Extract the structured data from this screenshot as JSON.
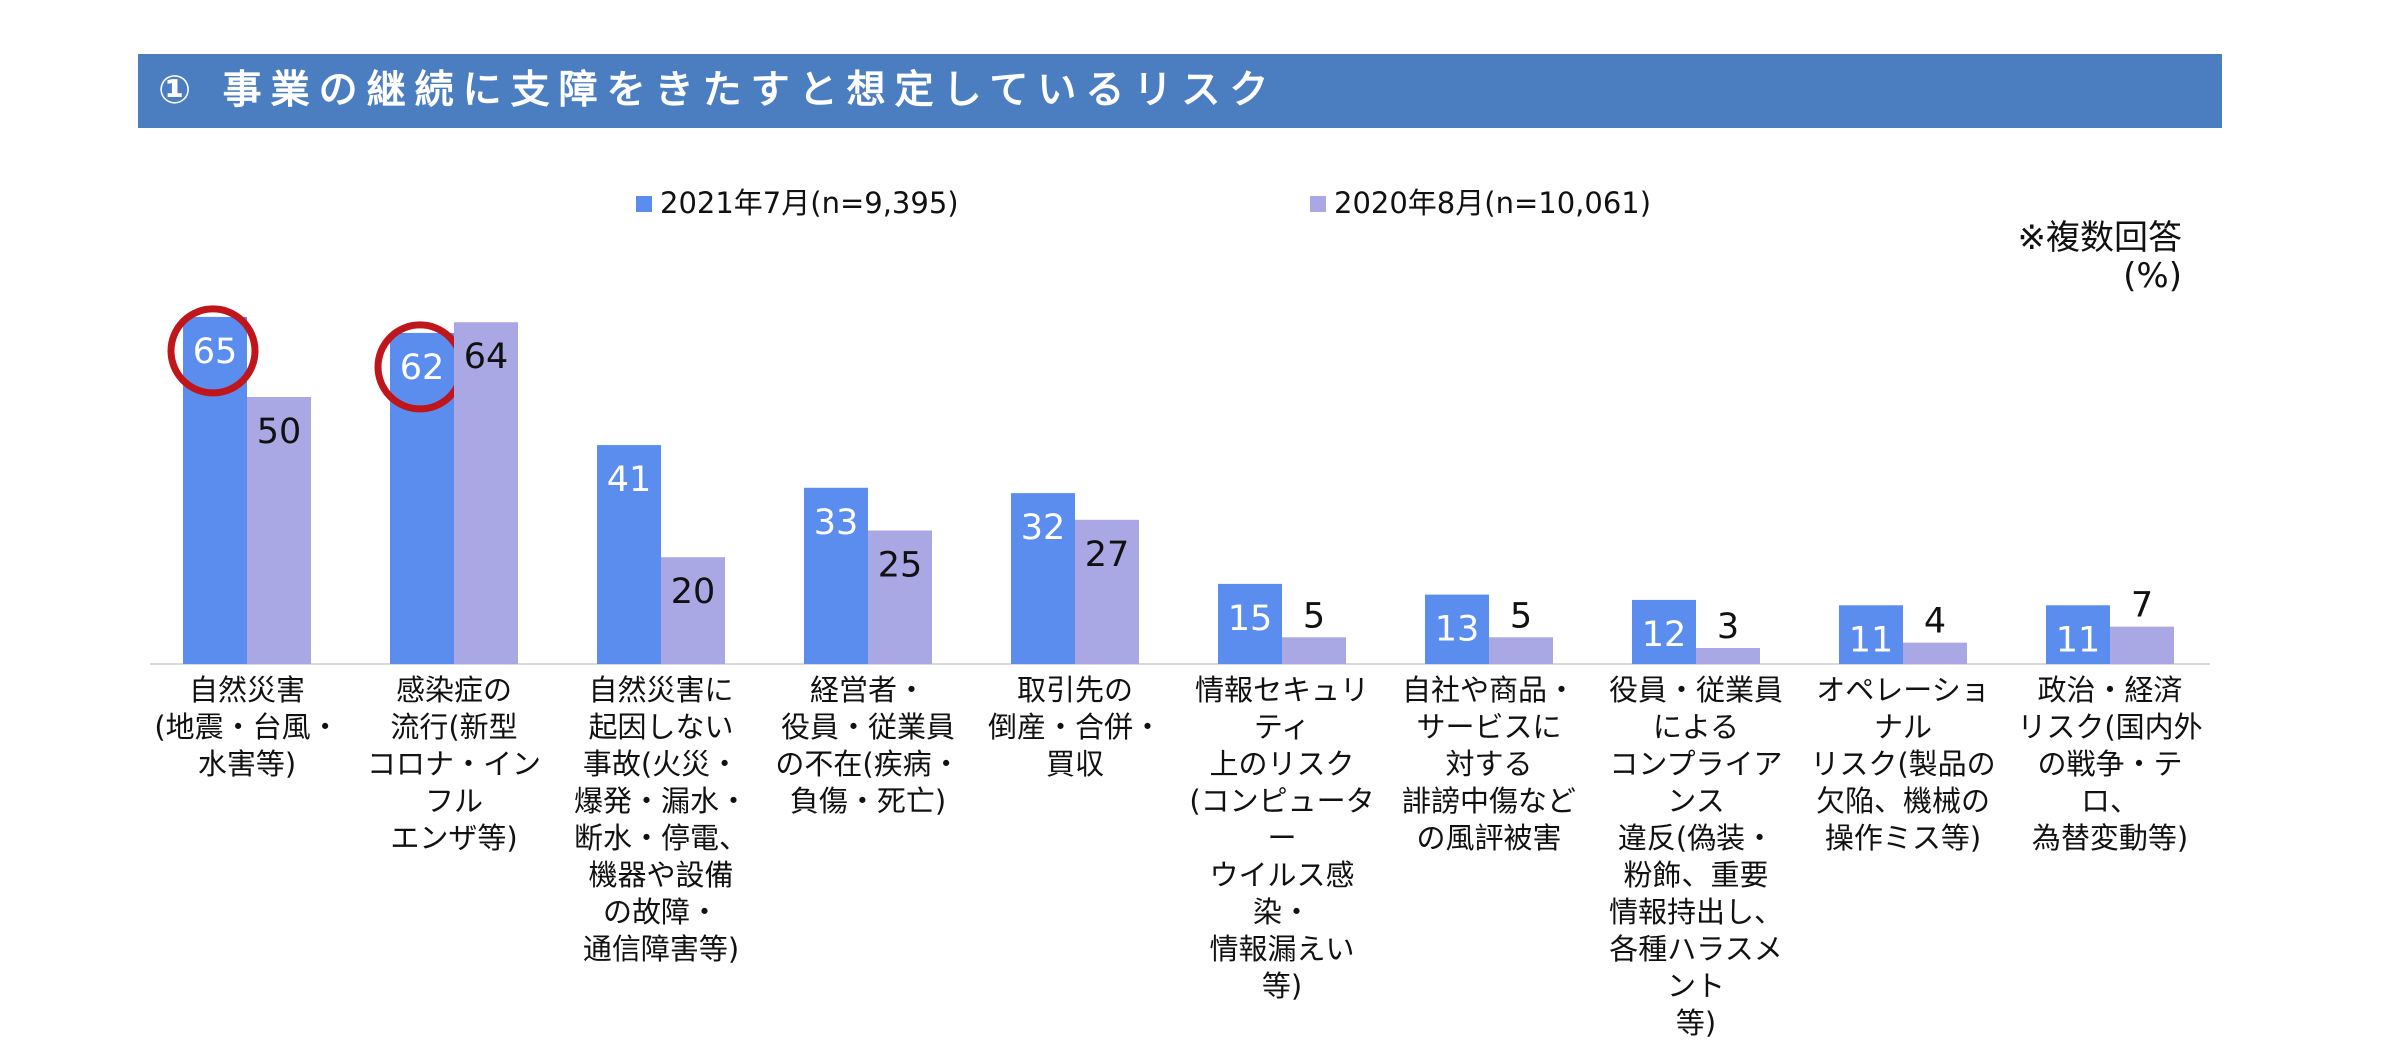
{
  "header": {
    "title": "① 事業の継続に支障をきたすと想定しているリスク"
  },
  "note": {
    "multiple_answers": "※複数回答",
    "unit": "(%)"
  },
  "colors": {
    "title_bg": "#4a7ec1",
    "series_2021": "#5b8def",
    "series_2020": "#a9a8e4",
    "highlight_circle": "#c0151b"
  },
  "chart_data": {
    "type": "bar",
    "title": "",
    "xlabel": "",
    "ylabel": "",
    "ylim": [
      0,
      70
    ],
    "grid": false,
    "legend_position": "top",
    "categories": [
      "自然災害\n(地震・台風・\n水害等)",
      "感染症の\n流行(新型\nコロナ・インフル\nエンザ等)",
      "自然災害に\n起因しない\n事故(火災・\n爆発・漏水・\n断水・停電、\n機器や設備\nの故障・\n通信障害等)",
      "経営者・\n役員・従業員\nの不在(疾病・\n負傷・死亡)",
      "取引先の\n倒産・合併・\n買収",
      "情報セキュリティ\n上のリスク\n(コンピューター\nウイルス感染・\n情報漏えい\n等)",
      "自社や商品・\nサービスに\n対する\n誹謗中傷など\nの風評被害",
      "役員・従業員\nによる\nコンプライアンス\n違反(偽装・\n粉飾、重要\n情報持出し、\n各種ハラスメント\n等)",
      "オペレーショナル\nリスク(製品の\n欠陥、機械の\n操作ミス等)",
      "政治・経済\nリスク(国内外\nの戦争・テロ、\n為替変動等)"
    ],
    "series": [
      {
        "name": "2021年7月(n=9,395)",
        "values": [
          65,
          62,
          41,
          33,
          32,
          15,
          13,
          12,
          11,
          11
        ],
        "highlighted": [
          true,
          true,
          false,
          false,
          false,
          false,
          false,
          false,
          false,
          false
        ]
      },
      {
        "name": "2020年8月(n=10,061)",
        "values": [
          50,
          64,
          20,
          25,
          27,
          5,
          5,
          3,
          4,
          7
        ]
      }
    ]
  }
}
